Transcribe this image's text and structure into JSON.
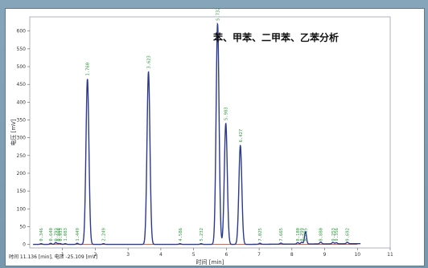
{
  "chart_data": {
    "type": "line",
    "title": "苯、甲苯、二甲苯、乙苯分析",
    "xlabel": "时间 [min]",
    "ylabel": "电压 [mV]",
    "xlim": [
      0,
      11
    ],
    "ylim": [
      -10,
      640
    ],
    "x_ticks": [
      "1",
      "2",
      "3",
      "4",
      "5",
      "6",
      "7",
      "8",
      "9",
      "10",
      "11"
    ],
    "y_ticks": [
      "0",
      "50",
      "100",
      "150",
      "200",
      "250",
      "300",
      "350",
      "400",
      "450",
      "500",
      "550",
      "600"
    ],
    "series": [
      {
        "color": "#2b3a8f",
        "peaks": [
          {
            "label": "0.346",
            "rt": 0.346,
            "height": 2
          },
          {
            "label": "0.640",
            "rt": 0.64,
            "height": 3
          },
          {
            "label": "0.793",
            "rt": 0.793,
            "height": 5
          },
          {
            "label": "0.868",
            "rt": 0.868,
            "height": 2
          },
          {
            "label": "0.933",
            "rt": 0.933,
            "height": 2
          },
          {
            "label": "1.083",
            "rt": 1.083,
            "height": 2
          },
          {
            "label": "1.449",
            "rt": 1.449,
            "height": 3
          },
          {
            "label": "1.760",
            "rt": 1.76,
            "height": 465
          },
          {
            "label": "2.249",
            "rt": 2.249,
            "height": 2
          },
          {
            "label": "3.623",
            "rt": 3.623,
            "height": 485
          },
          {
            "label": "4.586",
            "rt": 4.586,
            "height": 2
          },
          {
            "label": "5.232",
            "rt": 5.232,
            "height": 2
          },
          {
            "label": "5.732",
            "rt": 5.732,
            "height": 620
          },
          {
            "label": "5.983",
            "rt": 5.983,
            "height": 340
          },
          {
            "label": "6.427",
            "rt": 6.427,
            "height": 278
          },
          {
            "label": "7.025",
            "rt": 7.025,
            "height": 3
          },
          {
            "label": "7.665",
            "rt": 7.665,
            "height": 3
          },
          {
            "label": "8.180",
            "rt": 8.18,
            "height": 4
          },
          {
            "label": "8.299",
            "rt": 8.299,
            "height": 5
          },
          {
            "label": "8.415",
            "rt": 8.415,
            "height": 35
          },
          {
            "label": "8.880",
            "rt": 8.88,
            "height": 5
          },
          {
            "label": "9.253",
            "rt": 9.253,
            "height": 4
          },
          {
            "label": "9.356",
            "rt": 9.356,
            "height": 3
          },
          {
            "label": "9.692",
            "rt": 9.692,
            "height": 4
          }
        ]
      }
    ],
    "baseline_color": "#e0452f",
    "status": "时间 11.136 [min], 电压 -25.109 [mV]"
  }
}
